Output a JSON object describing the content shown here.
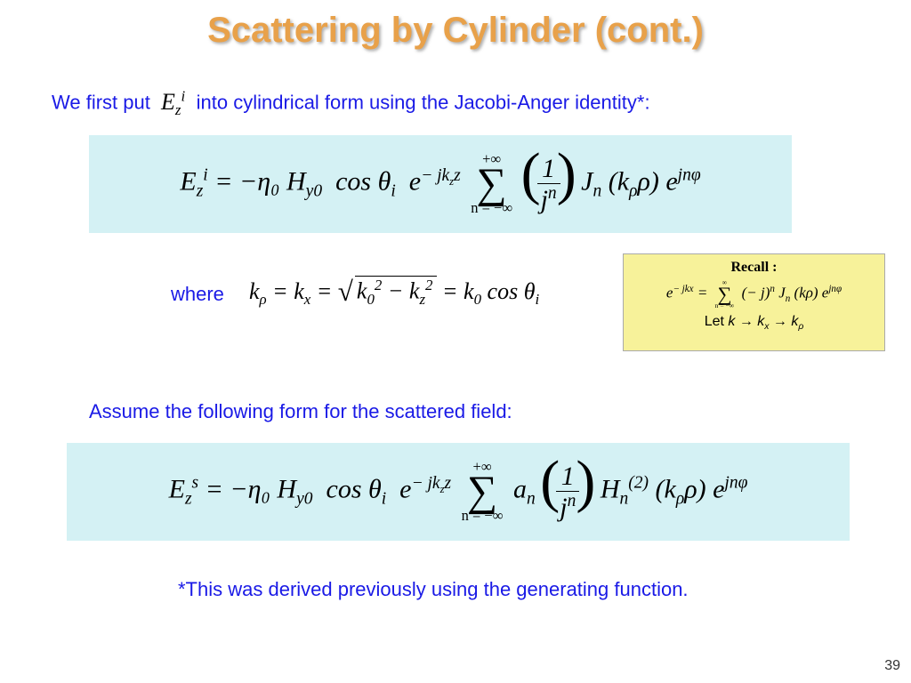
{
  "title": "Scattering by Cylinder (cont.)",
  "intro_pre": "We first put",
  "intro_sym": "E",
  "intro_sym_sub": "z",
  "intro_sym_sup": "i",
  "intro_post": "into cylindrical form using the Jacobi-Anger identity*:",
  "colors": {
    "title": "#e8a14a",
    "body_text": "#1a1ae6",
    "eq_bg": "#d4f1f4",
    "recall_bg": "#f7f29a",
    "page_bg": "#ffffff"
  },
  "eq1": {
    "lhs_base": "E",
    "lhs_sub": "z",
    "lhs_sup": "i",
    "rhs_prefix": "= −η₀ H",
    "H_sub": "y0",
    "cos": "cos θ",
    "cos_sub": "i",
    "exp1": "e",
    "exp1_sup": "− jk",
    "exp1_sup_sub": "z",
    "exp1_sup_tail": "z",
    "sum_top": "+∞",
    "sum_bot": "n = −∞",
    "frac_num": "1",
    "frac_den_base": "j",
    "frac_den_sup": "n",
    "J": "J",
    "J_sub": "n",
    "arg": "(k",
    "arg_sub": "ρ",
    "arg_tail": "ρ)",
    "exp2": "e",
    "exp2_sup": "jnφ"
  },
  "where_label": "where",
  "krho": {
    "k1": "k",
    "k1_sub": "ρ",
    "eq": " = k",
    "k2_sub": "x",
    "eq2": " = ",
    "rad_a": "k",
    "rad_a_sub": "0",
    "rad_a_sup": "2",
    "minus": " − k",
    "rad_b_sub": "z",
    "rad_b_sup": "2",
    "eq3": " = k",
    "k3_sub": "0",
    "cos": " cos θ",
    "cos_sub": "i"
  },
  "recall": {
    "header": "Recall :",
    "lhs": "e",
    "lhs_sup": "− jkx",
    "eq": " = ",
    "sum_top": "∞",
    "sum_bot": "n = −∞",
    "term1": "(− j)",
    "term1_sup": "n",
    "J": " J",
    "J_sub": "n",
    "arg": "(kρ) e",
    "exp_sup": "jnφ",
    "let_pre": "Let ",
    "let_body": "k → k",
    "let_sub1": "x",
    "let_arrow": " → k",
    "let_sub2": "ρ"
  },
  "assume": "Assume the following form for the scattered field:",
  "eq2": {
    "lhs_base": "E",
    "lhs_sub": "z",
    "lhs_sup": "s",
    "rhs_prefix": "= −η₀ H",
    "H_sub": "y0",
    "cos": "cos θ",
    "cos_sub": "i",
    "exp1": "e",
    "exp1_sup": "− jk",
    "exp1_sup_sub": "z",
    "exp1_sup_tail": "z",
    "sum_top": "+∞",
    "sum_bot": "n = −∞",
    "a": "a",
    "a_sub": "n",
    "frac_num": "1",
    "frac_den_base": "j",
    "frac_den_sup": "n",
    "H": "H",
    "H_sub2": "n",
    "H_sup": "(2)",
    "arg": "(k",
    "arg_sub": "ρ",
    "arg_tail": "ρ)",
    "exp2": "e",
    "exp2_sup": "jnφ"
  },
  "footnote": "*This was derived previously using the generating function.",
  "page_number": "39"
}
